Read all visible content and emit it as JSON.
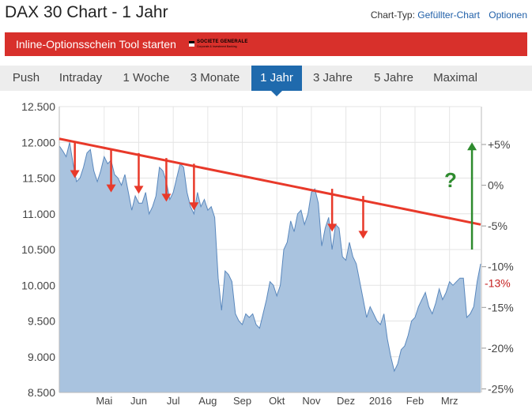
{
  "header": {
    "title": "DAX 30 Chart - 1 Jahr",
    "chart_type_label": "Chart-Typ:",
    "chart_type_value": "Gefüllter-Chart",
    "options_label": "Optionen"
  },
  "banner": {
    "button_label": "Inline-Optionsschein Tool starten",
    "logo_name": "SOCIETE GENERALE",
    "logo_sub": "Corporate & Investment Banking"
  },
  "tabs": [
    {
      "label": "Push",
      "active": false
    },
    {
      "label": "Intraday",
      "active": false
    },
    {
      "label": "1 Woche",
      "active": false
    },
    {
      "label": "3 Monate",
      "active": false
    },
    {
      "label": "1 Jahr",
      "active": true
    },
    {
      "label": "3 Jahre",
      "active": false
    },
    {
      "label": "5 Jahre",
      "active": false
    },
    {
      "label": "Maximal",
      "active": false
    }
  ],
  "colors": {
    "area_fill": "#a9c3df",
    "area_line": "#5a88bd",
    "trend_line": "#e8392a",
    "arrow_down": "#e8392a",
    "arrow_up": "#2e8b2e",
    "question_mark": "#2e8b2e",
    "marker_label": "#c62020"
  },
  "chart_data": {
    "type": "area",
    "title": "",
    "xlabel": "",
    "ylabel": "",
    "ylim": [
      8500,
      12500
    ],
    "y_ticks": [
      "12.500",
      "12.000",
      "11.500",
      "11.000",
      "10.500",
      "10.000",
      "9.500",
      "9.000",
      "8.500"
    ],
    "y_tick_values": [
      12500,
      12000,
      11500,
      11000,
      10500,
      10000,
      9500,
      9000,
      8500
    ],
    "y2_ticks": [
      "+5%",
      "0%",
      "-5%",
      "-10%",
      "-15%",
      "-20%",
      "-25%"
    ],
    "y2_tick_values": [
      5,
      0,
      -5,
      -10,
      -15,
      -20,
      -25
    ],
    "y2_zero_value": 11400,
    "x_ticks": [
      "Mai",
      "Jun",
      "Jul",
      "Aug",
      "Sep",
      "Okt",
      "Nov",
      "Dez",
      "2016",
      "Feb",
      "Mrz"
    ],
    "x_tick_positions": [
      1.3,
      2.3,
      3.3,
      4.3,
      5.3,
      6.3,
      7.3,
      8.3,
      9.3,
      10.3,
      11.3
    ],
    "xlim": [
      0,
      12.2
    ],
    "grid": true,
    "x": [
      0.0,
      0.1,
      0.2,
      0.3,
      0.4,
      0.5,
      0.6,
      0.7,
      0.8,
      0.9,
      1.0,
      1.1,
      1.2,
      1.3,
      1.4,
      1.5,
      1.6,
      1.7,
      1.8,
      1.9,
      2.0,
      2.1,
      2.2,
      2.3,
      2.4,
      2.5,
      2.6,
      2.7,
      2.8,
      2.9,
      3.0,
      3.1,
      3.2,
      3.3,
      3.4,
      3.5,
      3.6,
      3.7,
      3.8,
      3.9,
      4.0,
      4.1,
      4.2,
      4.3,
      4.4,
      4.5,
      4.6,
      4.7,
      4.8,
      4.9,
      5.0,
      5.1,
      5.2,
      5.3,
      5.4,
      5.5,
      5.6,
      5.7,
      5.8,
      5.9,
      6.0,
      6.1,
      6.2,
      6.3,
      6.4,
      6.5,
      6.6,
      6.7,
      6.8,
      6.9,
      7.0,
      7.1,
      7.2,
      7.3,
      7.4,
      7.5,
      7.6,
      7.7,
      7.8,
      7.9,
      8.0,
      8.1,
      8.2,
      8.3,
      8.4,
      8.5,
      8.6,
      8.7,
      8.8,
      8.9,
      9.0,
      9.1,
      9.2,
      9.3,
      9.4,
      9.5,
      9.6,
      9.7,
      9.8,
      9.9,
      10.0,
      10.1,
      10.2,
      10.3,
      10.4,
      10.5,
      10.6,
      10.7,
      10.8,
      10.9,
      11.0,
      11.1,
      11.2,
      11.3,
      11.4,
      11.5,
      11.6,
      11.7,
      11.8,
      11.9,
      12.0,
      12.1,
      12.2
    ],
    "series": [
      {
        "values": [
          11950,
          11880,
          11800,
          12000,
          11700,
          11450,
          11500,
          11650,
          11850,
          11900,
          11600,
          11450,
          11600,
          11800,
          11700,
          11750,
          11550,
          11500,
          11400,
          11550,
          11300,
          11050,
          11250,
          11150,
          11150,
          11300,
          11000,
          11100,
          11250,
          11650,
          11600,
          11450,
          11200,
          11300,
          11500,
          11700,
          11650,
          11300,
          11100,
          11000,
          11300,
          11100,
          11200,
          11050,
          11100,
          10950,
          10100,
          9650,
          10200,
          10150,
          10050,
          9600,
          9500,
          9450,
          9600,
          9550,
          9600,
          9450,
          9400,
          9600,
          9800,
          10050,
          10000,
          9850,
          10000,
          10500,
          10600,
          10900,
          10750,
          11000,
          11050,
          10850,
          11000,
          11300,
          11350,
          11150,
          10550,
          10800,
          10950,
          10500,
          10850,
          10800,
          10400,
          10350,
          10600,
          10400,
          10300,
          10050,
          9800,
          9550,
          9700,
          9600,
          9500,
          9450,
          9600,
          9250,
          9000,
          8800,
          8900,
          9100,
          9150,
          9300,
          9500,
          9550,
          9700,
          9800,
          9900,
          9700,
          9600,
          9750,
          9950,
          9800,
          9900,
          10050,
          10000,
          10050,
          10100,
          10100,
          9550,
          9600,
          9700,
          10050,
          10300
        ]
      }
    ],
    "annotations": {
      "trend_line": {
        "from": [
          0.0,
          12050
        ],
        "to": [
          12.2,
          10850
        ]
      },
      "down_arrows": [
        {
          "x": 0.45,
          "from": 12000,
          "to": 11500
        },
        {
          "x": 1.5,
          "from": 11900,
          "to": 11300
        },
        {
          "x": 2.3,
          "from": 11850,
          "to": 11280
        },
        {
          "x": 3.1,
          "from": 11780,
          "to": 11170
        },
        {
          "x": 3.9,
          "from": 11700,
          "to": 11050
        },
        {
          "x": 7.9,
          "from": 11350,
          "to": 10750
        },
        {
          "x": 8.8,
          "from": 11250,
          "to": 10650
        }
      ],
      "up_arrow": {
        "x": 11.95,
        "from": 10500,
        "to": 12000
      },
      "question_mark": "?",
      "marker_label": "-13%",
      "marker_value": 10020
    }
  }
}
